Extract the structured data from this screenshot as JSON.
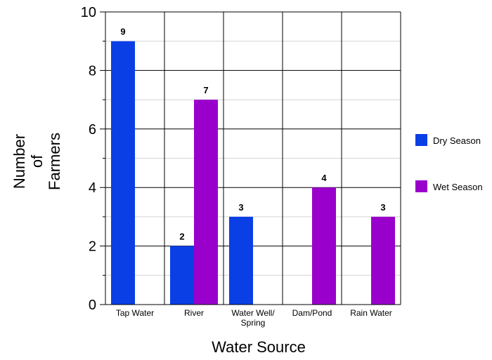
{
  "chart_data": {
    "type": "bar",
    "title": "",
    "xlabel": "Water Source",
    "ylabel": [
      "Number",
      "of",
      "Farmers"
    ],
    "categories": [
      [
        "Tap Water"
      ],
      [
        "River"
      ],
      [
        "Water Well/",
        "Spring"
      ],
      [
        "Dam/Pond"
      ],
      [
        "Rain Water"
      ]
    ],
    "series": [
      {
        "name": "Dry Season",
        "color": "#0a3fe6",
        "values": [
          9,
          2,
          3,
          0,
          0
        ],
        "labels": [
          "9",
          "2",
          "3",
          "",
          ""
        ]
      },
      {
        "name": "Wet Season",
        "color": "#9900cc",
        "values": [
          0,
          7,
          0,
          4,
          3
        ],
        "labels": [
          "",
          "7",
          "",
          "4",
          "3"
        ]
      }
    ],
    "ylim": [
      0,
      10
    ],
    "yticks": [
      "0",
      "2",
      "4",
      "6",
      "8",
      "10"
    ],
    "grid": true,
    "legend": "right"
  }
}
